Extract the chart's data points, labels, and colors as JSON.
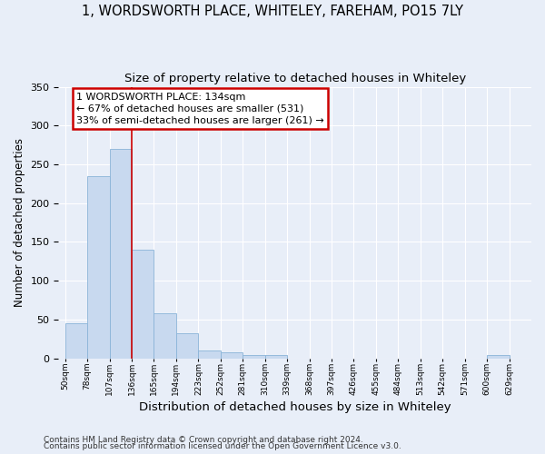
{
  "title_line1": "1, WORDSWORTH PLACE, WHITELEY, FAREHAM, PO15 7LY",
  "title_line2": "Size of property relative to detached houses in Whiteley",
  "xlabel": "Distribution of detached houses by size in Whiteley",
  "ylabel": "Number of detached properties",
  "footnote_line1": "Contains HM Land Registry data © Crown copyright and database right 2024.",
  "footnote_line2": "Contains public sector information licensed under the Open Government Licence v3.0.",
  "bins": [
    "50sqm",
    "78sqm",
    "107sqm",
    "136sqm",
    "165sqm",
    "194sqm",
    "223sqm",
    "252sqm",
    "281sqm",
    "310sqm",
    "339sqm",
    "368sqm",
    "397sqm",
    "426sqm",
    "455sqm",
    "484sqm",
    "513sqm",
    "542sqm",
    "571sqm",
    "600sqm",
    "629sqm"
  ],
  "values": [
    45,
    235,
    270,
    140,
    58,
    32,
    10,
    8,
    4,
    4,
    0,
    0,
    0,
    0,
    0,
    0,
    0,
    0,
    0,
    4,
    0
  ],
  "bar_color": "#c8d9ef",
  "bar_edge_color": "#8ab4d8",
  "highlight_color": "#cc0000",
  "annotation_line1": "1 WORDSWORTH PLACE: 134sqm",
  "annotation_line2": "← 67% of detached houses are smaller (531)",
  "annotation_line3": "33% of semi-detached houses are larger (261) →",
  "annotation_box_color": "#ffffff",
  "annotation_box_edge": "#cc0000",
  "ylim": [
    0,
    350
  ],
  "yticks": [
    0,
    50,
    100,
    150,
    200,
    250,
    300,
    350
  ],
  "background_color": "#e8eef8",
  "grid_color": "#ffffff",
  "title1_fontsize": 10.5,
  "title2_fontsize": 9.5,
  "xlabel_fontsize": 9.5,
  "ylabel_fontsize": 8.5,
  "footnote_fontsize": 6.5,
  "red_line_index": 3,
  "annotation_fontsize": 8
}
